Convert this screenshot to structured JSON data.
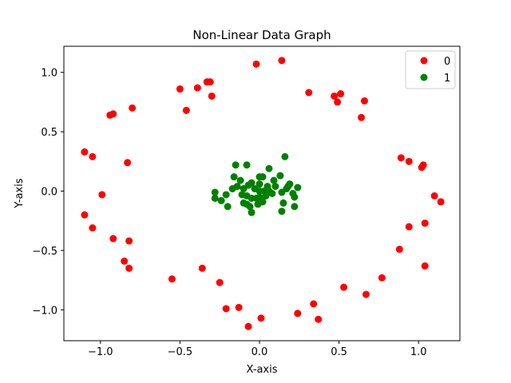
{
  "chart_data": {
    "type": "scatter",
    "title": "Non-Linear Data Graph",
    "xlabel": "X-axis",
    "ylabel": "Y-axis",
    "xlim": [
      -1.23,
      1.26
    ],
    "ylim": [
      -1.26,
      1.22
    ],
    "xticks": [
      -1.0,
      -0.5,
      0.0,
      0.5,
      1.0
    ],
    "xtick_labels": [
      "−1.0",
      "−0.5",
      "0.0",
      "0.5",
      "1.0"
    ],
    "yticks": [
      -1.0,
      -0.5,
      0.0,
      0.5,
      1.0
    ],
    "ytick_labels": [
      "−1.0",
      "−0.5",
      "0.0",
      "0.5",
      "1.0"
    ],
    "grid": false,
    "legend_position": "top-right",
    "series": [
      {
        "name": "0",
        "color": "#ff0000",
        "points": [
          [
            -0.02,
            1.07
          ],
          [
            0.14,
            1.1
          ],
          [
            -0.33,
            0.92
          ],
          [
            -0.31,
            0.92
          ],
          [
            -0.5,
            0.86
          ],
          [
            -0.39,
            0.87
          ],
          [
            -0.3,
            0.8
          ],
          [
            -0.46,
            0.68
          ],
          [
            -0.8,
            0.7
          ],
          [
            -0.94,
            0.64
          ],
          [
            -0.92,
            0.65
          ],
          [
            0.31,
            0.83
          ],
          [
            0.47,
            0.8
          ],
          [
            0.51,
            0.82
          ],
          [
            0.49,
            0.75
          ],
          [
            0.66,
            0.76
          ],
          [
            0.64,
            0.62
          ],
          [
            -1.1,
            0.33
          ],
          [
            -1.05,
            0.29
          ],
          [
            -0.83,
            0.24
          ],
          [
            0.89,
            0.28
          ],
          [
            0.94,
            0.25
          ],
          [
            1.02,
            0.2
          ],
          [
            1.03,
            0.22
          ],
          [
            -0.99,
            -0.03
          ],
          [
            1.1,
            -0.04
          ],
          [
            1.14,
            -0.09
          ],
          [
            -1.1,
            -0.2
          ],
          [
            -1.05,
            -0.31
          ],
          [
            1.04,
            -0.27
          ],
          [
            0.94,
            -0.3
          ],
          [
            -0.92,
            -0.4
          ],
          [
            -0.82,
            -0.42
          ],
          [
            0.88,
            -0.49
          ],
          [
            -0.85,
            -0.59
          ],
          [
            -0.82,
            -0.65
          ],
          [
            1.04,
            -0.63
          ],
          [
            -0.36,
            -0.65
          ],
          [
            -0.55,
            -0.74
          ],
          [
            -0.25,
            -0.77
          ],
          [
            0.77,
            -0.73
          ],
          [
            0.53,
            -0.81
          ],
          [
            0.67,
            -0.87
          ],
          [
            -0.21,
            -0.99
          ],
          [
            -0.13,
            -0.98
          ],
          [
            0.34,
            -0.95
          ],
          [
            0.24,
            -1.03
          ],
          [
            0.37,
            -1.08
          ],
          [
            0.01,
            -1.07
          ],
          [
            -0.07,
            -1.14
          ]
        ]
      },
      {
        "name": "1",
        "color": "#008000",
        "points": [
          [
            0.16,
            0.29
          ],
          [
            -0.15,
            0.22
          ],
          [
            -0.08,
            0.22
          ],
          [
            0.06,
            0.19
          ],
          [
            -0.16,
            0.12
          ],
          [
            0.13,
            0.13
          ],
          [
            -0.12,
            0.09
          ],
          [
            -0.05,
            0.07
          ],
          [
            -0.07,
            0.05
          ],
          [
            0.0,
            0.12
          ],
          [
            0.02,
            0.12
          ],
          [
            0.09,
            0.09
          ],
          [
            -0.14,
            0.04
          ],
          [
            0.0,
            0.06
          ],
          [
            0.05,
            0.04
          ],
          [
            0.19,
            0.06
          ],
          [
            -0.17,
            0.02
          ],
          [
            -0.1,
            0.02
          ],
          [
            0.18,
            0.04
          ],
          [
            0.24,
            0.03
          ],
          [
            -0.28,
            -0.01
          ],
          [
            -0.21,
            -0.03
          ],
          [
            -0.11,
            -0.03
          ],
          [
            0.0,
            0.0
          ],
          [
            0.03,
            0.0
          ],
          [
            0.14,
            -0.01
          ],
          [
            0.17,
            0.02
          ],
          [
            0.21,
            -0.02
          ],
          [
            -0.28,
            -0.06
          ],
          [
            -0.24,
            -0.08
          ],
          [
            -0.08,
            -0.04
          ],
          [
            -0.05,
            -0.06
          ],
          [
            0.0,
            -0.05
          ],
          [
            0.04,
            -0.04
          ],
          [
            0.22,
            -0.05
          ],
          [
            -0.2,
            -0.13
          ],
          [
            -0.08,
            -0.11
          ],
          [
            -0.06,
            -0.13
          ],
          [
            -0.01,
            -0.11
          ],
          [
            0.15,
            -0.1
          ],
          [
            0.22,
            -0.13
          ],
          [
            -0.05,
            -0.18
          ],
          [
            0.14,
            -0.17
          ],
          [
            -0.02,
            -0.06
          ],
          [
            0.08,
            -0.02
          ],
          [
            -0.1,
            -0.1
          ],
          [
            0.1,
            0.04
          ],
          [
            0.02,
            -0.09
          ],
          [
            -0.03,
            0.02
          ],
          [
            0.06,
            0.0
          ]
        ]
      }
    ]
  }
}
